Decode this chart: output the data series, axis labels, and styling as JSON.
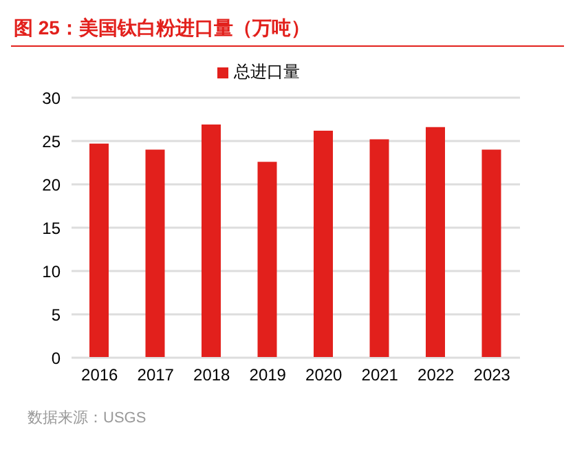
{
  "chart_data": {
    "type": "bar",
    "title": "图 25：美国钛白粉进口量（万吨）",
    "categories": [
      "2016",
      "2017",
      "2018",
      "2019",
      "2020",
      "2021",
      "2022",
      "2023"
    ],
    "series": [
      {
        "name": "总进口量",
        "color": "#e2201c",
        "values": [
          24.7,
          24.0,
          26.9,
          22.6,
          26.2,
          25.2,
          26.6,
          24.0
        ]
      }
    ],
    "ylim": [
      0,
      30
    ],
    "yticks": [
      0,
      5,
      10,
      15,
      20,
      25,
      30
    ],
    "grid": "y",
    "legend": "top",
    "annotations": [
      "数据来源：USGS"
    ]
  }
}
